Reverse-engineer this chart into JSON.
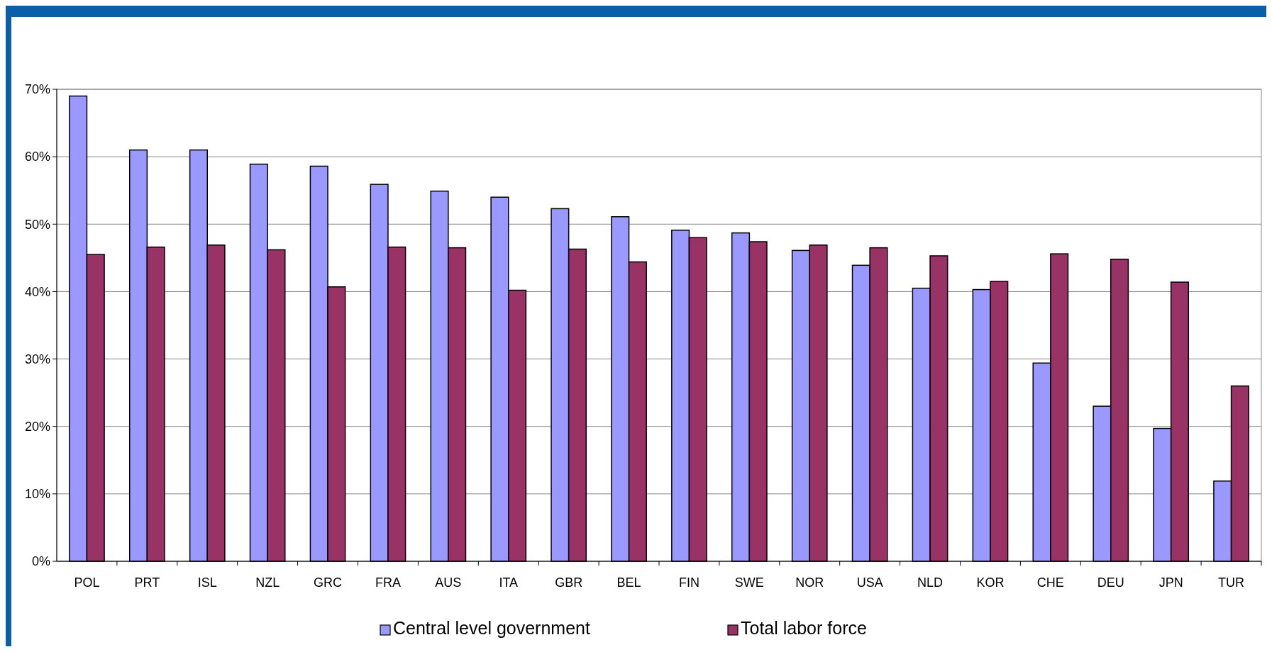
{
  "chart_data": {
    "type": "bar",
    "categories": [
      "POL",
      "PRT",
      "ISL",
      "NZL",
      "GRC",
      "FRA",
      "AUS",
      "ITA",
      "GBR",
      "BEL",
      "FIN",
      "SWE",
      "NOR",
      "USA",
      "NLD",
      "KOR",
      "CHE",
      "DEU",
      "JPN",
      "TUR"
    ],
    "series": [
      {
        "name": "Central level government",
        "color": "#9999ff",
        "values": [
          69.0,
          61.0,
          61.0,
          58.9,
          58.6,
          55.9,
          54.9,
          54.0,
          52.3,
          51.1,
          49.1,
          48.7,
          46.1,
          43.9,
          40.5,
          40.3,
          29.4,
          23.0,
          19.7,
          11.9
        ]
      },
      {
        "name": "Total labor force",
        "color": "#993366",
        "values": [
          45.5,
          46.6,
          46.9,
          46.2,
          40.7,
          46.6,
          46.5,
          40.2,
          46.3,
          44.4,
          48.0,
          47.4,
          46.9,
          46.5,
          45.3,
          41.5,
          45.6,
          44.8,
          41.4,
          26.0
        ]
      }
    ],
    "ylim": [
      0,
      70
    ],
    "yticks": [
      {
        "value": 0,
        "label": "0%"
      },
      {
        "value": 10,
        "label": "10%"
      },
      {
        "value": 20,
        "label": "20%"
      },
      {
        "value": 30,
        "label": "30%"
      },
      {
        "value": 40,
        "label": "40%"
      },
      {
        "value": 50,
        "label": "50%"
      },
      {
        "value": 60,
        "label": "60%"
      },
      {
        "value": 70,
        "label": "70%"
      }
    ],
    "grid": "y",
    "legend": "bottom"
  }
}
